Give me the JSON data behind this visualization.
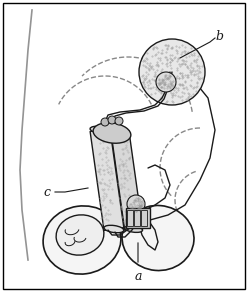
{
  "bg_color": "#ffffff",
  "border_color": "#000000",
  "line_color": "#1a1a1a",
  "dashed_color": "#888888",
  "fill_stipple": "#cccccc",
  "fill_white": "#f5f5f5",
  "label_a": "a",
  "label_b": "b",
  "label_c": "c",
  "figsize": [
    2.48,
    2.92
  ],
  "dpi": 100
}
